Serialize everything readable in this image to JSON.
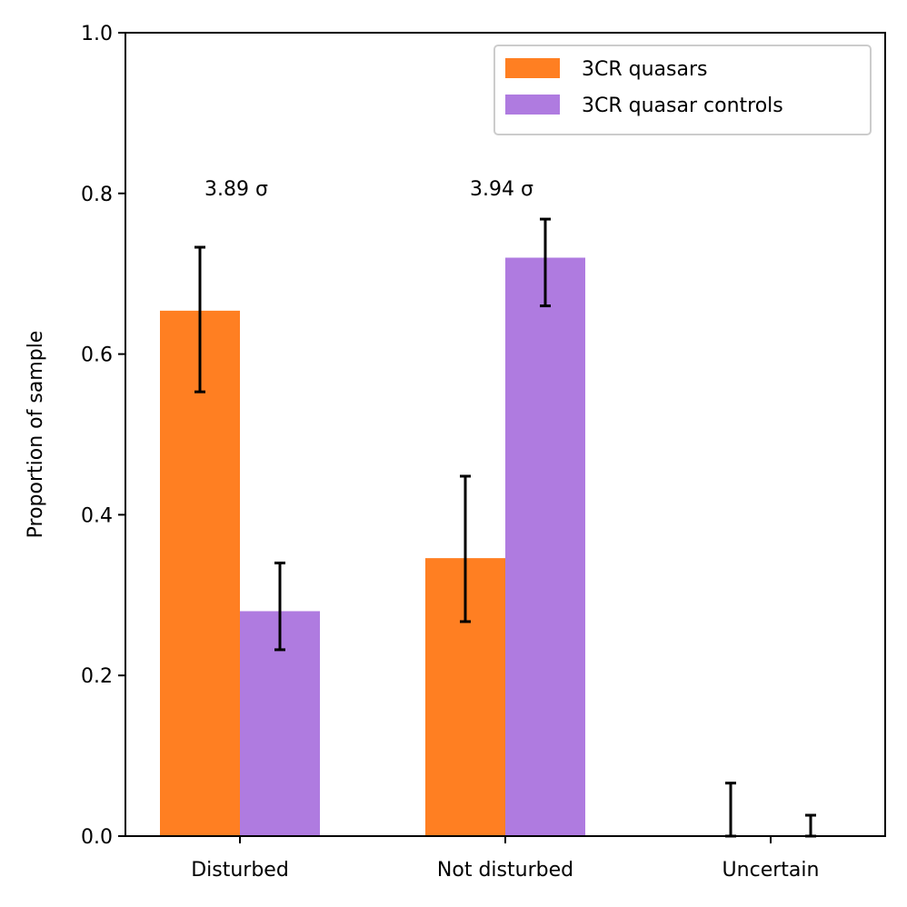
{
  "chart_data": {
    "type": "bar",
    "title": "",
    "xlabel": "",
    "ylabel": "Proportion of sample",
    "ylim": [
      0.0,
      1.0
    ],
    "yticks": [
      "0.0",
      "0.2",
      "0.4",
      "0.6",
      "0.8",
      "1.0"
    ],
    "categories": [
      "Disturbed",
      "Not disturbed",
      "Uncertain"
    ],
    "series": [
      {
        "name": "3CR quasars",
        "color": "#ff7f22",
        "values": [
          0.654,
          0.346,
          0.0
        ],
        "err_low": [
          0.553,
          0.267,
          0.0
        ],
        "err_high": [
          0.733,
          0.448,
          0.066
        ]
      },
      {
        "name": "3CR quasar controls",
        "color": "#af7be0",
        "values": [
          0.28,
          0.72,
          0.0
        ],
        "err_low": [
          0.232,
          0.66,
          0.0
        ],
        "err_high": [
          0.34,
          0.768,
          0.026
        ]
      }
    ],
    "annotations": [
      {
        "category": "Disturbed",
        "text": "3.89 σ",
        "y": 0.8
      },
      {
        "category": "Not disturbed",
        "text": "3.94 σ",
        "y": 0.8
      }
    ],
    "legend_position": "top-right",
    "grid": false
  }
}
